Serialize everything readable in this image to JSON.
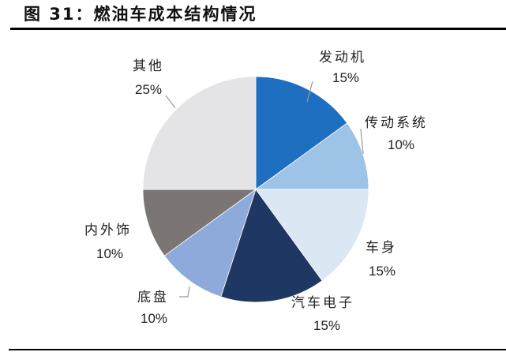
{
  "title": "图 31：燃油车成本结构情况",
  "chart_data": {
    "type": "pie",
    "title": "燃油车成本结构情况",
    "figure_label": "图 31",
    "start_angle": "12 o'clock",
    "direction": "clockwise",
    "categories": [
      "发动机",
      "传动系统",
      "车身",
      "汽车电子",
      "底盘",
      "内外饰",
      "其他"
    ],
    "values": [
      15,
      10,
      15,
      15,
      10,
      10,
      25
    ],
    "unit": "%",
    "colors": [
      "#1E6FC0",
      "#9DC3E6",
      "#DCE7F4",
      "#1F3763",
      "#8EAADB",
      "#7B7573",
      "#E4E3E6"
    ],
    "labels": [
      {
        "name": "发动机",
        "pct": "15%"
      },
      {
        "name": "传动系统",
        "pct": "10%"
      },
      {
        "name": "车身",
        "pct": "15%"
      },
      {
        "name": "汽车电子",
        "pct": "15%"
      },
      {
        "name": "底盘",
        "pct": "10%"
      },
      {
        "name": "内外饰",
        "pct": "10%"
      },
      {
        "name": "其他",
        "pct": "25%"
      }
    ],
    "legend": "none (data labels outside slices)"
  }
}
